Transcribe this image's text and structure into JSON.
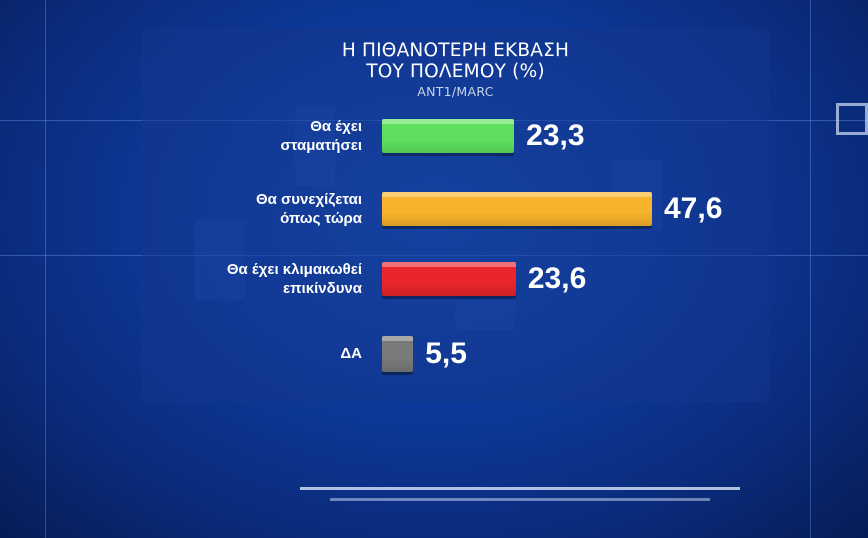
{
  "chart_data": {
    "type": "bar",
    "orientation": "horizontal",
    "title_lines": [
      "Η ΠΙΘΑΝΟΤΕΡΗ ΕΚΒΑΣΗ",
      "ΤΟΥ ΠΟΛΕΜΟΥ (%)"
    ],
    "subtitle": "ANT1/MARC",
    "categories": [
      [
        "Θα έχει",
        "σταματήσει"
      ],
      [
        "Θα συνεχίζεται",
        "όπως τώρα"
      ],
      [
        "Θα έχει κλιμακωθεί",
        "επικίνδυνα"
      ],
      [
        "ΔΑ"
      ]
    ],
    "values": [
      23.3,
      47.6,
      23.6,
      5.5
    ],
    "value_labels": [
      "23,3",
      "47,6",
      "23,6",
      "5,5"
    ],
    "colors": [
      "#5ee05e",
      "#f7b32b",
      "#e8262c",
      "#7a7a7a"
    ],
    "xlim": [
      0,
      47.6
    ],
    "grid": false,
    "legend": "none"
  }
}
